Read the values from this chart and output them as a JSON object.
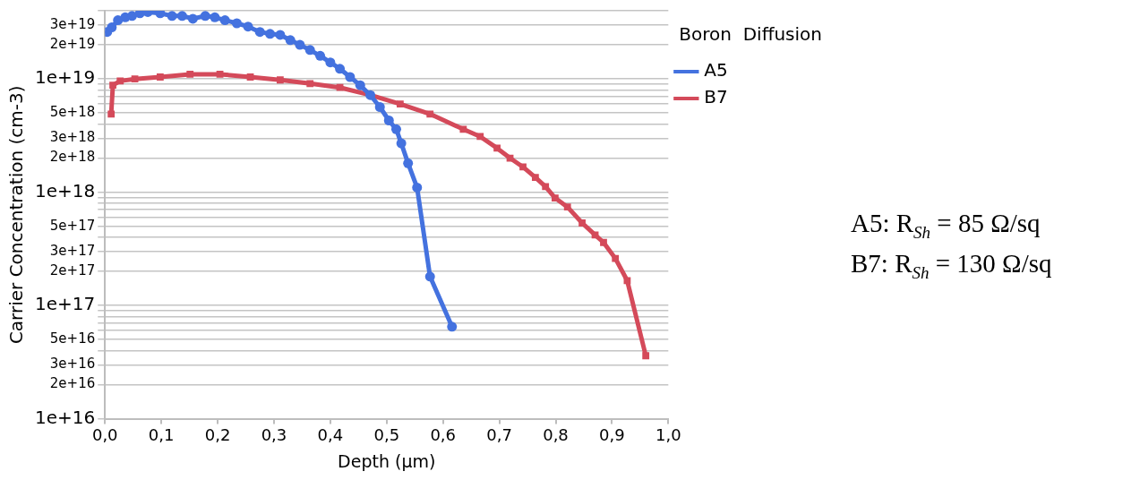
{
  "chart_data": {
    "type": "line",
    "xlabel": "Depth (µm)",
    "ylabel": "Carrier Concentration (cm-3)",
    "legend_title": "Boron  Diffusion",
    "legend": "right",
    "grid": "y",
    "log": "y",
    "line_style": "solid",
    "xlim": [
      0,
      1
    ],
    "xticks": [
      {
        "value": 0,
        "label": "0,0"
      },
      {
        "value": 0.1,
        "label": "0,1"
      },
      {
        "value": 0.2,
        "label": "0,2"
      },
      {
        "value": 0.3,
        "label": "0,3"
      },
      {
        "value": 0.4,
        "label": "0,4"
      },
      {
        "value": 0.5,
        "label": "0,5"
      },
      {
        "value": 0.6,
        "label": "0,6"
      },
      {
        "value": 0.7,
        "label": "0,7"
      },
      {
        "value": 0.8,
        "label": "0,8"
      },
      {
        "value": 0.9,
        "label": "0,9"
      },
      {
        "value": 1,
        "label": "1,0"
      }
    ],
    "ylim": [
      1e+16,
      4e+19
    ],
    "yticks": [
      {
        "value": 1e+16,
        "label": "1e+16"
      },
      {
        "value": 2e+16,
        "label": "2e+16"
      },
      {
        "value": 3e+16,
        "label": "3e+16"
      },
      {
        "value": 4e+16,
        "label": null
      },
      {
        "value": 5e+16,
        "label": "5e+16"
      },
      {
        "value": 6e+16,
        "label": null
      },
      {
        "value": 7e+16,
        "label": null
      },
      {
        "value": 8e+16,
        "label": null
      },
      {
        "value": 9e+16,
        "label": null
      },
      {
        "value": 1e+17,
        "label": "1e+17"
      },
      {
        "value": 2e+17,
        "label": "2e+17"
      },
      {
        "value": 3e+17,
        "label": "3e+17"
      },
      {
        "value": 4e+17,
        "label": null
      },
      {
        "value": 5e+17,
        "label": "5e+17"
      },
      {
        "value": 6e+17,
        "label": null
      },
      {
        "value": 7e+17,
        "label": null
      },
      {
        "value": 8e+17,
        "label": null
      },
      {
        "value": 9e+17,
        "label": null
      },
      {
        "value": 1e+18,
        "label": "1e+18"
      },
      {
        "value": 2e+18,
        "label": "2e+18"
      },
      {
        "value": 3e+18,
        "label": "3e+18"
      },
      {
        "value": 4e+18,
        "label": null
      },
      {
        "value": 5e+18,
        "label": "5e+18"
      },
      {
        "value": 6e+18,
        "label": null
      },
      {
        "value": 7e+18,
        "label": null
      },
      {
        "value": 8e+18,
        "label": null
      },
      {
        "value": 9e+18,
        "label": null
      },
      {
        "value": 1e+19,
        "label": "1e+19"
      },
      {
        "value": 2e+19,
        "label": "2e+19"
      },
      {
        "value": 3e+19,
        "label": "3e+19"
      },
      {
        "value": 4e+19,
        "label": null
      }
    ],
    "series": [
      {
        "name": "A5",
        "color": "#4472df",
        "marker": "circle",
        "x": [
          0.004,
          0.012,
          0.023,
          0.036,
          0.048,
          0.062,
          0.076,
          0.098,
          0.119,
          0.137,
          0.156,
          0.178,
          0.195,
          0.213,
          0.234,
          0.254,
          0.275,
          0.293,
          0.311,
          0.329,
          0.346,
          0.364,
          0.382,
          0.4,
          0.417,
          0.435,
          0.453,
          0.471,
          0.488,
          0.504,
          0.517,
          0.526,
          0.538,
          0.554,
          0.577,
          0.616
        ],
        "values": [
          2.6e+19,
          2.85e+19,
          3.3e+19,
          3.5e+19,
          3.6e+19,
          3.8e+19,
          3.9e+19,
          3.8e+19,
          3.6e+19,
          3.6e+19,
          3.4e+19,
          3.6e+19,
          3.5e+19,
          3.3e+19,
          3.1e+19,
          2.9e+19,
          2.6e+19,
          2.5e+19,
          2.45e+19,
          2.2e+19,
          2e+19,
          1.8e+19,
          1.6e+19,
          1.4e+19,
          1.23e+19,
          1.04e+19,
          8.8e+18,
          7.2e+18,
          5.65e+18,
          4.3e+18,
          3.6e+18,
          2.7e+18,
          1.8e+18,
          1.1e+18,
          1.8e+17,
          6.5e+16
        ]
      },
      {
        "name": "B7",
        "color": "#d44a5a",
        "marker": "square",
        "x": [
          0.011,
          0.014,
          0.027,
          0.053,
          0.098,
          0.151,
          0.204,
          0.258,
          0.311,
          0.364,
          0.417,
          0.471,
          0.524,
          0.577,
          0.636,
          0.666,
          0.696,
          0.719,
          0.742,
          0.764,
          0.782,
          0.799,
          0.821,
          0.847,
          0.87,
          0.885,
          0.906,
          0.927,
          0.96
        ],
        "values": [
          4.9e+18,
          8.8e+18,
          9.6e+18,
          1e+19,
          1.04e+19,
          1.1e+19,
          1.1e+19,
          1.04e+19,
          9.8e+18,
          9.1e+18,
          8.4e+18,
          7.2e+18,
          6e+18,
          4.9e+18,
          3.6e+18,
          3.1e+18,
          2.45e+18,
          2e+18,
          1.67e+18,
          1.35e+18,
          1.12e+18,
          8.9e+17,
          7.4e+17,
          5.35e+17,
          4.2e+17,
          3.6e+17,
          2.6e+17,
          1.66e+17,
          3.6e+16
        ]
      }
    ],
    "annotations": [
      "A5: R$_{Sh}$ = 85 Ω/sq",
      "B7: R$_{Sh}$ = 130 Ω/sq"
    ]
  }
}
